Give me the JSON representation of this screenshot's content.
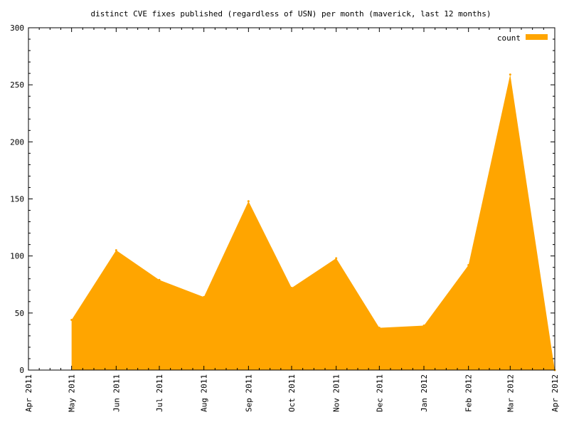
{
  "chart_data": {
    "type": "area",
    "title": "distinct CVE fixes published (regardless of USN) per month (maverick, last 12 months)",
    "xlabel": "",
    "ylabel": "",
    "ylim": [
      0,
      300
    ],
    "yticks": [
      0,
      50,
      100,
      150,
      200,
      250,
      300
    ],
    "xlim": [
      "2011-04-01",
      "2012-04-01"
    ],
    "xticks": [
      {
        "date": "2011-04-01",
        "label": "Apr 2011"
      },
      {
        "date": "2011-05-01",
        "label": "May 2011"
      },
      {
        "date": "2011-06-01",
        "label": "Jun 2011"
      },
      {
        "date": "2011-07-01",
        "label": "Jul 2011"
      },
      {
        "date": "2011-08-01",
        "label": "Aug 2011"
      },
      {
        "date": "2011-09-01",
        "label": "Sep 2011"
      },
      {
        "date": "2011-10-01",
        "label": "Oct 2011"
      },
      {
        "date": "2011-11-01",
        "label": "Nov 2011"
      },
      {
        "date": "2011-12-01",
        "label": "Dec 2011"
      },
      {
        "date": "2012-01-01",
        "label": "Jan 2012"
      },
      {
        "date": "2012-02-01",
        "label": "Feb 2012"
      },
      {
        "date": "2012-03-01",
        "label": "Mar 2012"
      },
      {
        "date": "2012-04-01",
        "label": "Apr 2012"
      }
    ],
    "grid": false,
    "legend_position": "top-right",
    "colors": {
      "fill": "#FFA500",
      "axis": "#000000",
      "background": "#FFFFFF"
    },
    "series": [
      {
        "name": "count",
        "x": [
          "2011-05-01",
          "2011-06-01",
          "2011-07-01",
          "2011-08-01",
          "2011-09-01",
          "2011-10-01",
          "2011-11-01",
          "2011-12-01",
          "2012-01-01",
          "2012-02-01",
          "2012-03-01",
          "2012-04-01"
        ],
        "y": [
          44,
          105,
          79,
          64,
          148,
          72,
          98,
          37,
          39,
          92,
          259,
          0
        ]
      }
    ]
  }
}
